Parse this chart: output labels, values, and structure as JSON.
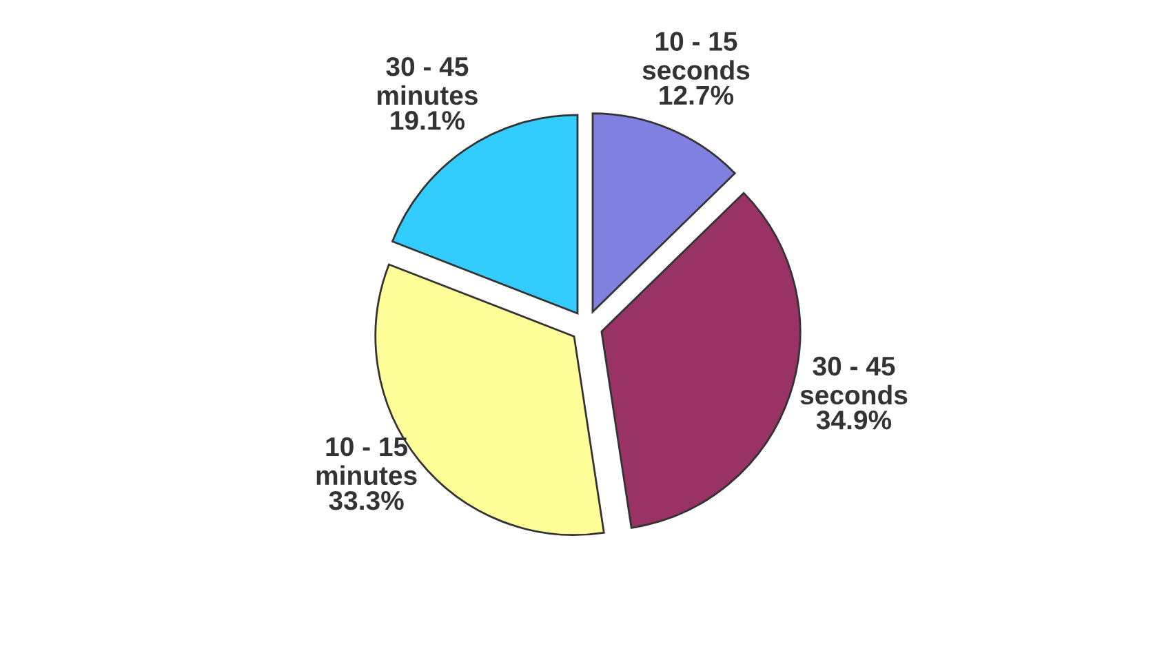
{
  "chart_data": {
    "type": "pie",
    "categories": [
      "10 - 15 seconds",
      "30 - 45 seconds",
      "10 - 15 minutes",
      "30 - 45 minutes"
    ],
    "values": [
      12.7,
      34.9,
      33.3,
      19.1
    ],
    "colors": [
      "#8080e0",
      "#993366",
      "#ffff99",
      "#33ccff"
    ],
    "value_labels": [
      "12.7%",
      "34.9%",
      "33.3%",
      "19.1%"
    ],
    "legend": false
  }
}
